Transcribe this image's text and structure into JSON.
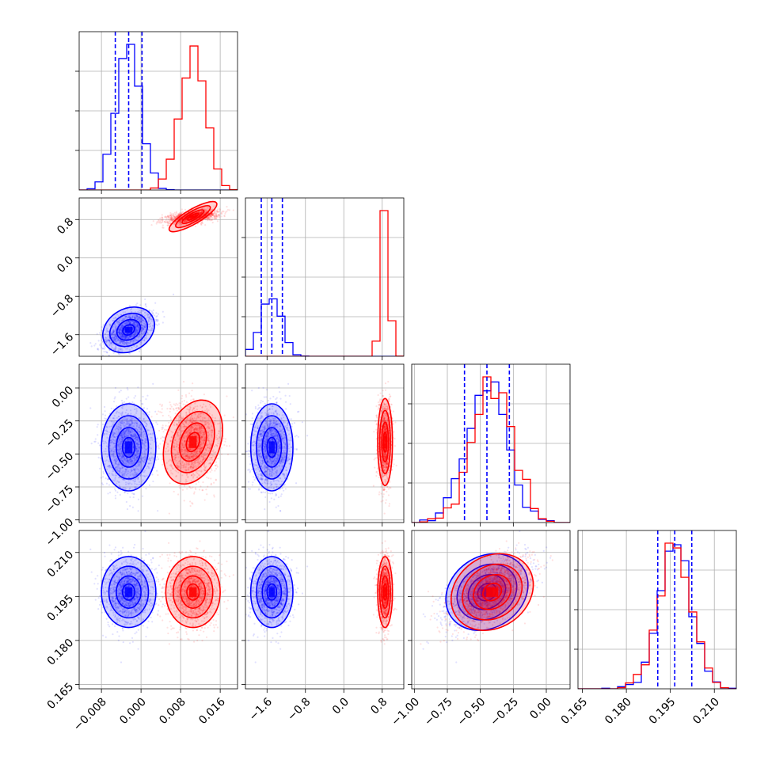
{
  "colors": {
    "series_a": "#0000ff",
    "series_b": "#ff0000",
    "grid": "#b0b0b0"
  },
  "chart_data": {
    "type": "corner",
    "grid": true,
    "n_params": 4,
    "ranges": [
      [
        -0.0125,
        0.0195
      ],
      [
        -2.05,
        1.25
      ],
      [
        -1.02,
        0.18
      ],
      [
        0.1635,
        0.2175
      ]
    ],
    "ticks": [
      [
        "−0.008",
        "0.000",
        "0.008",
        "0.016"
      ],
      [
        "−1.6",
        "−0.8",
        "0.0",
        "0.8"
      ],
      [
        "−1.00",
        "−0.75",
        "−0.50",
        "−0.25",
        "0.00"
      ],
      [
        "0.165",
        "0.180",
        "0.195",
        "0.210"
      ]
    ],
    "tick_values": [
      [
        -0.008,
        0.0,
        0.008,
        0.016
      ],
      [
        -1.6,
        -0.8,
        0.0,
        0.8
      ],
      [
        -1.0,
        -0.75,
        -0.5,
        -0.25,
        0.0
      ],
      [
        0.165,
        0.18,
        0.195,
        0.21
      ]
    ],
    "series": [
      {
        "name": "",
        "color": "#0000ff",
        "mean": [
          -0.0025,
          -1.5,
          -0.45,
          0.1965
        ],
        "sd": [
          0.0025,
          0.2,
          0.15,
          0.0055
        ],
        "corr_2_3": 0.55
      },
      {
        "name": "",
        "color": "#ff0000",
        "mean": [
          0.0105,
          0.86,
          -0.41,
          0.1965
        ],
        "sd": [
          0.0025,
          0.07,
          0.15,
          0.0055
        ],
        "corr_2_3": 0.55
      }
    ],
    "quantile_lines": {
      "series": 0,
      "values": [
        [
          -0.0052,
          -0.0025,
          0.0002
        ],
        [
          -1.72,
          -1.5,
          -1.28
        ],
        [
          -0.62,
          -0.45,
          -0.28
        ],
        [
          0.1907,
          0.1965,
          0.2023
        ]
      ]
    }
  }
}
